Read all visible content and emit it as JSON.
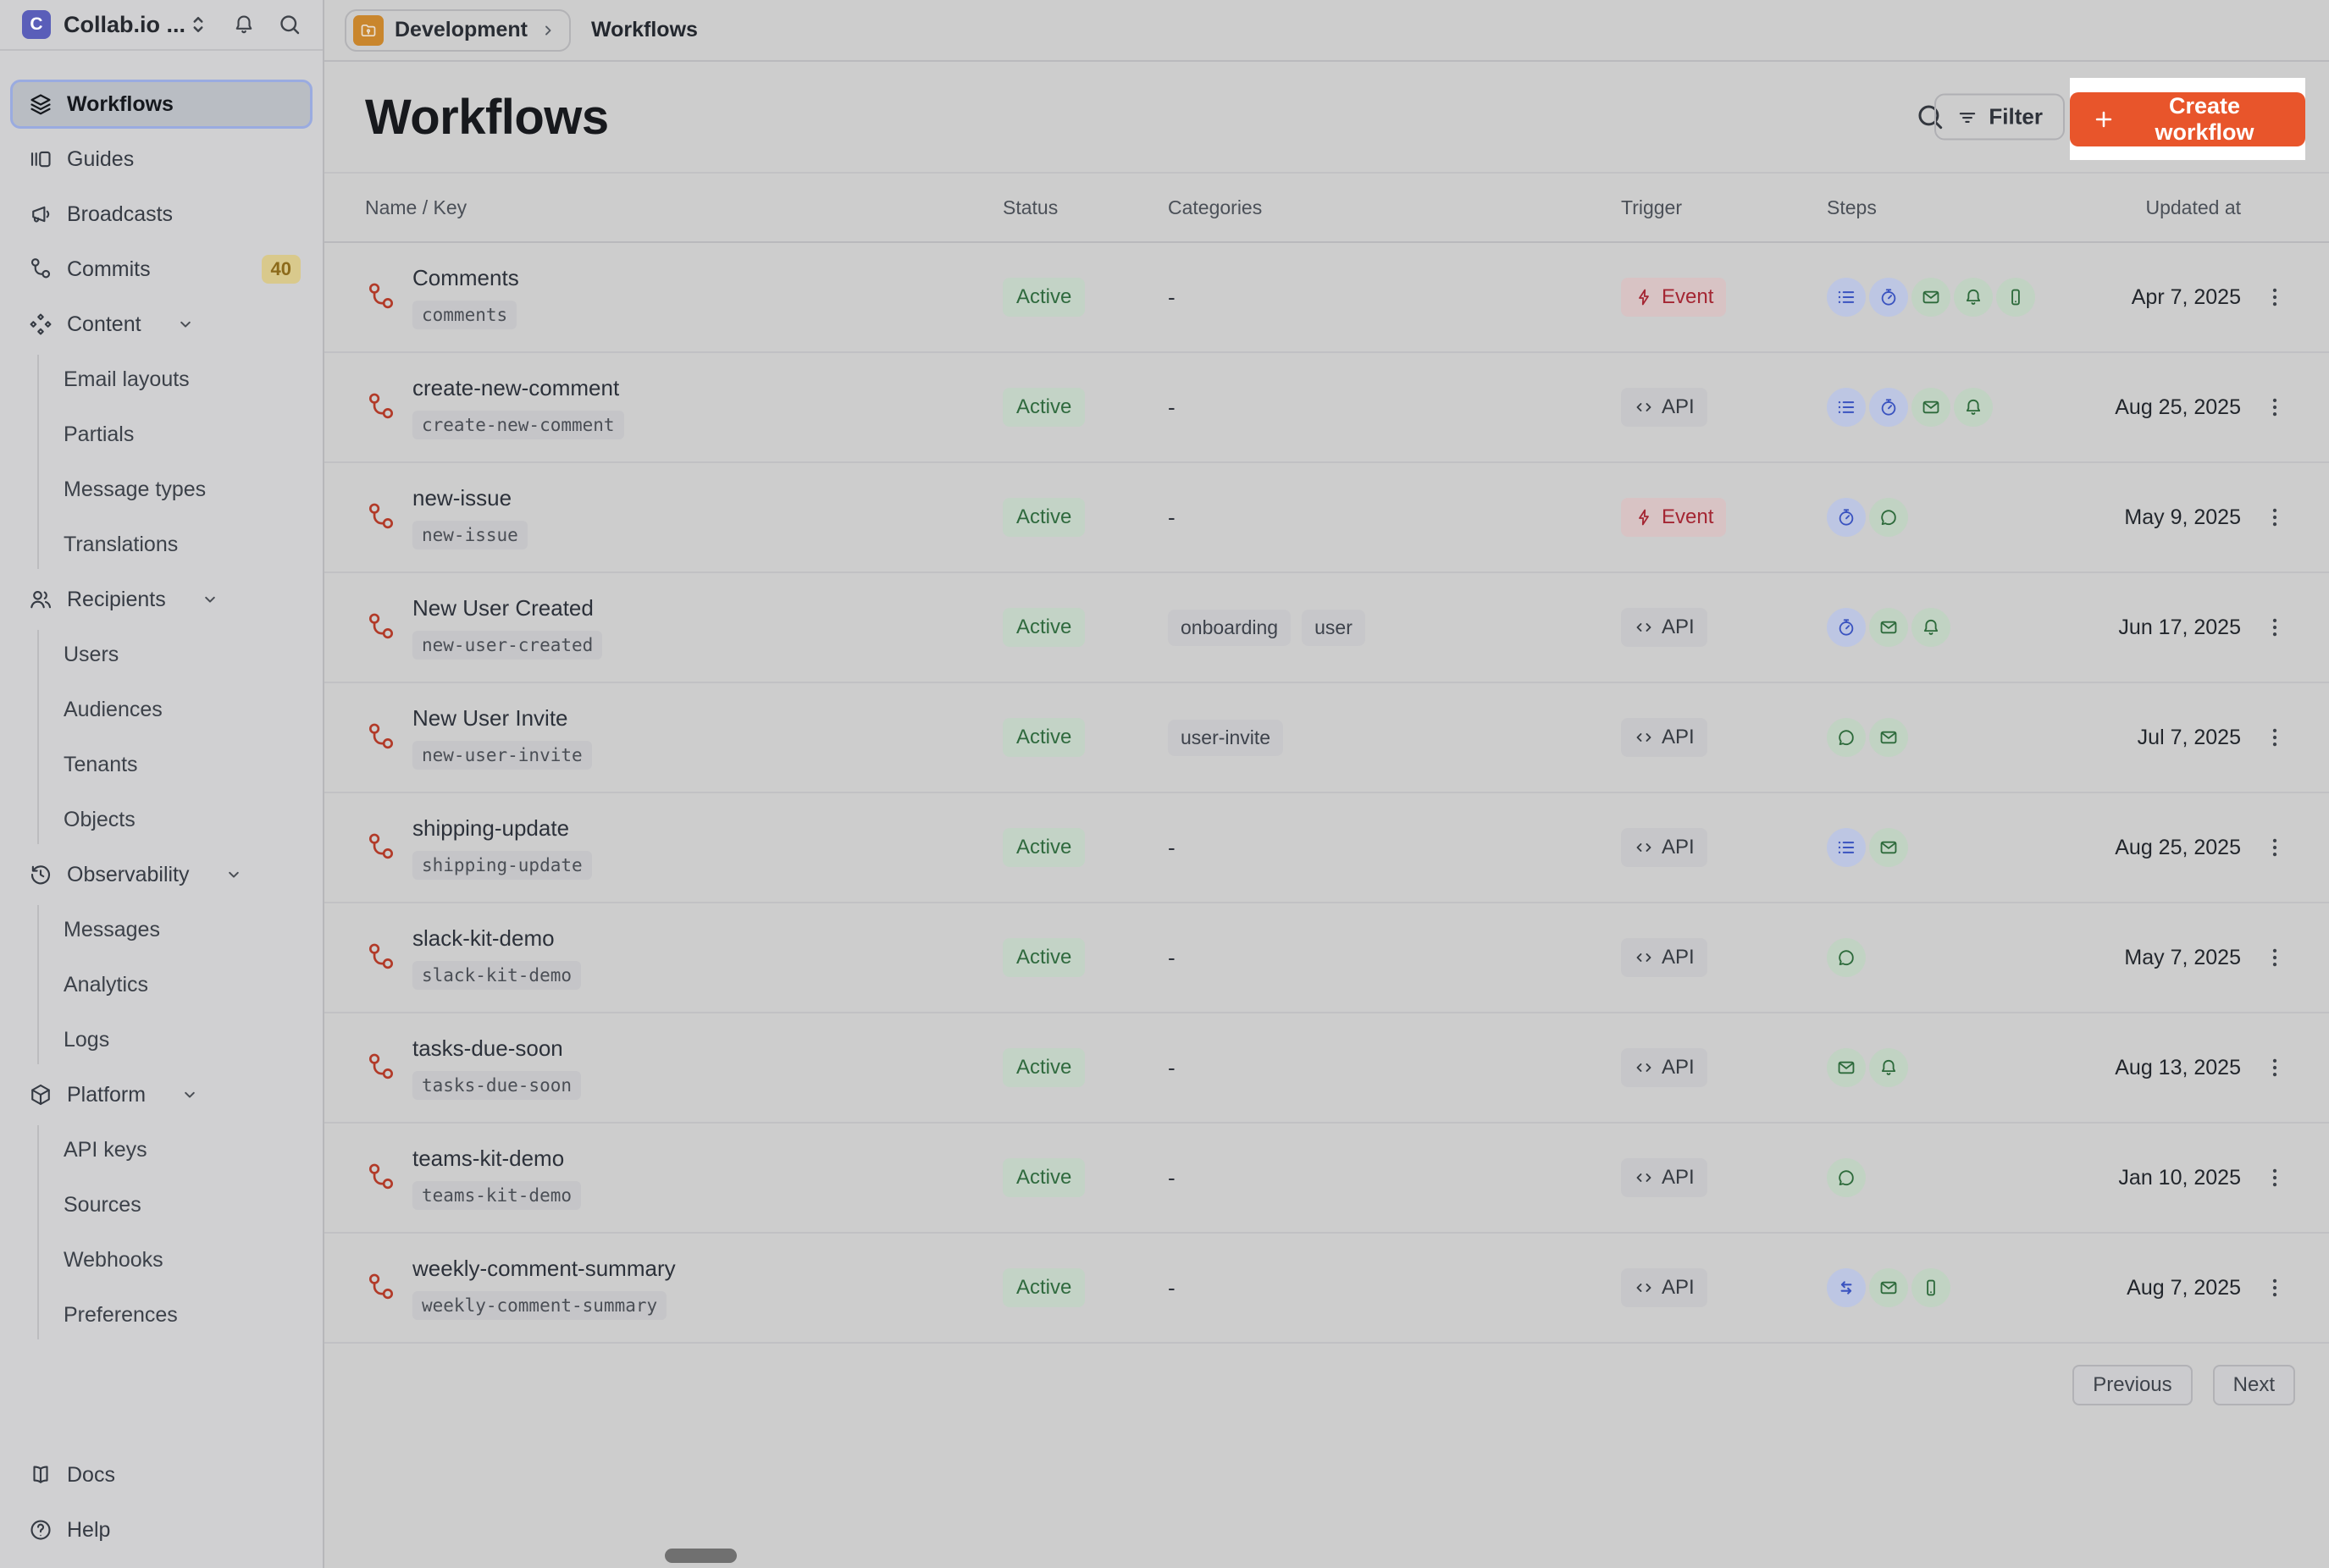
{
  "colors": {
    "accent_orange": "#E8552B",
    "spotlight_bg": "#FFFFFF",
    "status_active_bg": "#C3D3C6",
    "status_active_text": "#2F6A3E",
    "trigger_event_bg": "#D8C3C4",
    "trigger_event_text": "#A42633",
    "trigger_api_bg": "#C6C6C9",
    "chip_blue": "#3A53C0",
    "chip_green": "#2D6A3B",
    "workflow_icon_red": "#B23A28",
    "commits_badge_bg": "#D9C98C",
    "folder_orange": "#C9862D",
    "logo_indigo": "#5A5EB9"
  },
  "sidebar": {
    "app_title": "Collab.io ...",
    "items": [
      {
        "label": "Workflows",
        "icon": "layers",
        "selected": true
      },
      {
        "label": "Guides",
        "icon": "guides"
      },
      {
        "label": "Broadcasts",
        "icon": "megaphone"
      },
      {
        "label": "Commits",
        "icon": "branch",
        "badge": "40"
      },
      {
        "label": "Content",
        "icon": "diamonds",
        "expandable": true,
        "children": [
          "Email layouts",
          "Partials",
          "Message types",
          "Translations"
        ]
      },
      {
        "label": "Recipients",
        "icon": "users",
        "expandable": true,
        "children": [
          "Users",
          "Audiences",
          "Tenants",
          "Objects"
        ]
      },
      {
        "label": "Observability",
        "icon": "history",
        "expandable": true,
        "children": [
          "Messages",
          "Analytics",
          "Logs"
        ]
      },
      {
        "label": "Platform",
        "icon": "cube",
        "expandable": true,
        "children": [
          "API keys",
          "Sources",
          "Webhooks",
          "Preferences"
        ]
      }
    ],
    "footer": [
      {
        "label": "Docs",
        "icon": "book"
      },
      {
        "label": "Help",
        "icon": "help"
      }
    ]
  },
  "topbar": {
    "environment": "Development",
    "page": "Workflows"
  },
  "header": {
    "title": "Workflows",
    "filter_label": "Filter",
    "create_label": "Create workflow"
  },
  "table": {
    "columns": [
      "Name / Key",
      "Status",
      "Categories",
      "Trigger",
      "Steps",
      "Updated at"
    ],
    "empty_placeholder": "-",
    "rows": [
      {
        "name": "Comments",
        "key": "comments",
        "status": "Active",
        "categories": [],
        "trigger": {
          "type": "event",
          "label": "Event"
        },
        "steps": [
          {
            "icon": "list",
            "color": "blue"
          },
          {
            "icon": "timer",
            "color": "blue"
          },
          {
            "icon": "mail",
            "color": "green"
          },
          {
            "icon": "bell",
            "color": "green"
          },
          {
            "icon": "phone",
            "color": "green"
          }
        ],
        "updated": "Apr 7, 2025"
      },
      {
        "name": "create-new-comment",
        "key": "create-new-comment",
        "status": "Active",
        "categories": [],
        "trigger": {
          "type": "api",
          "label": "API"
        },
        "steps": [
          {
            "icon": "list",
            "color": "blue"
          },
          {
            "icon": "timer",
            "color": "blue"
          },
          {
            "icon": "mail",
            "color": "green"
          },
          {
            "icon": "bell",
            "color": "green"
          }
        ],
        "updated": "Aug 25, 2025"
      },
      {
        "name": "new-issue",
        "key": "new-issue",
        "status": "Active",
        "categories": [],
        "trigger": {
          "type": "event",
          "label": "Event"
        },
        "steps": [
          {
            "icon": "timer",
            "color": "blue"
          },
          {
            "icon": "chat",
            "color": "green"
          }
        ],
        "updated": "May 9, 2025"
      },
      {
        "name": "New User Created",
        "key": "new-user-created",
        "status": "Active",
        "categories": [
          "onboarding",
          "user"
        ],
        "trigger": {
          "type": "api",
          "label": "API"
        },
        "steps": [
          {
            "icon": "timer",
            "color": "blue"
          },
          {
            "icon": "mail",
            "color": "green"
          },
          {
            "icon": "bell",
            "color": "green"
          }
        ],
        "updated": "Jun 17, 2025"
      },
      {
        "name": "New User Invite",
        "key": "new-user-invite",
        "status": "Active",
        "categories": [
          "user-invite"
        ],
        "trigger": {
          "type": "api",
          "label": "API"
        },
        "steps": [
          {
            "icon": "chat",
            "color": "green"
          },
          {
            "icon": "mail",
            "color": "green"
          }
        ],
        "updated": "Jul 7, 2025"
      },
      {
        "name": "shipping-update",
        "key": "shipping-update",
        "status": "Active",
        "categories": [],
        "trigger": {
          "type": "api",
          "label": "API"
        },
        "steps": [
          {
            "icon": "list",
            "color": "blue"
          },
          {
            "icon": "mail",
            "color": "green"
          }
        ],
        "updated": "Aug 25, 2025"
      },
      {
        "name": "slack-kit-demo",
        "key": "slack-kit-demo",
        "status": "Active",
        "categories": [],
        "trigger": {
          "type": "api",
          "label": "API"
        },
        "steps": [
          {
            "icon": "chat",
            "color": "green"
          }
        ],
        "updated": "May 7, 2025"
      },
      {
        "name": "tasks-due-soon",
        "key": "tasks-due-soon",
        "status": "Active",
        "categories": [],
        "trigger": {
          "type": "api",
          "label": "API"
        },
        "steps": [
          {
            "icon": "mail",
            "color": "green"
          },
          {
            "icon": "bell",
            "color": "green"
          }
        ],
        "updated": "Aug 13, 2025"
      },
      {
        "name": "teams-kit-demo",
        "key": "teams-kit-demo",
        "status": "Active",
        "categories": [],
        "trigger": {
          "type": "api",
          "label": "API"
        },
        "steps": [
          {
            "icon": "chat",
            "color": "green"
          }
        ],
        "updated": "Jan 10, 2025"
      },
      {
        "name": "weekly-comment-summary",
        "key": "weekly-comment-summary",
        "status": "Active",
        "categories": [],
        "trigger": {
          "type": "api",
          "label": "API"
        },
        "steps": [
          {
            "icon": "swap",
            "color": "blue"
          },
          {
            "icon": "mail",
            "color": "green"
          },
          {
            "icon": "phone",
            "color": "green"
          }
        ],
        "updated": "Aug 7, 2025"
      }
    ]
  },
  "pagination": {
    "previous": "Previous",
    "next": "Next"
  }
}
